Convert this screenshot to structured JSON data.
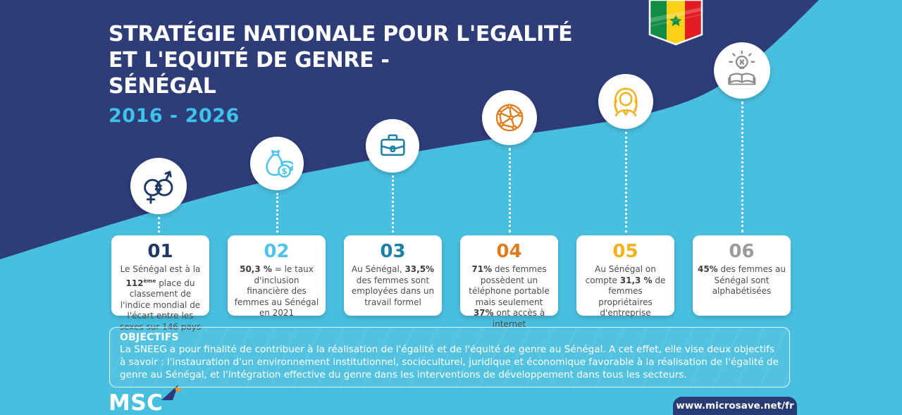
{
  "header": {
    "title_lines": [
      "STRATÉGIE NATIONALE POUR L'EGALITÉ",
      "ET L'EQUITÉ DE GENRE -",
      "SÉNÉGAL"
    ],
    "period": "2016 - 2026"
  },
  "flag": {
    "country": "Senegal",
    "colors": {
      "green": "#118C45",
      "yellow": "#FCD116",
      "red": "#E31B23",
      "star": "#118C45"
    }
  },
  "items": [
    {
      "number": "01",
      "accent_color": "#1F3864",
      "icon": "gender-equality-icon",
      "segments": [
        {
          "t": "Le  Sénégal est à la "
        },
        {
          "t": "112",
          "b": true
        },
        {
          "t": "ème",
          "b": true,
          "sup": true
        },
        {
          "t": " place du classement de l'indice mondial de l'écart entre les sexes sur 146 pays"
        }
      ]
    },
    {
      "number": "02",
      "accent_color": "#4EC3EA",
      "icon": "money-bag-icon",
      "segments": [
        {
          "t": "50,3 %",
          "b": true
        },
        {
          "t": " = le taux d'inclusion financière des femmes au Sénégal en 2021"
        }
      ]
    },
    {
      "number": "03",
      "accent_color": "#1B7FA8",
      "icon": "briefcase-icon",
      "segments": [
        {
          "t": "Au Sénégal, "
        },
        {
          "t": "33,5%",
          "b": true
        },
        {
          "t": " des femmes sont employées dans un travail formel"
        }
      ]
    },
    {
      "number": "04",
      "accent_color": "#E07C20",
      "icon": "network-icon",
      "segments": [
        {
          "t": "71%",
          "b": true
        },
        {
          "t": " des femmes possèdent un téléphone portable mais seulement "
        },
        {
          "t": "37%",
          "b": true
        },
        {
          "t": " ont accès à internet"
        }
      ]
    },
    {
      "number": "05",
      "accent_color": "#F2B11F",
      "icon": "woman-icon",
      "segments": [
        {
          "t": "Au Sénégal on compte "
        },
        {
          "t": "31,3 %",
          "b": true
        },
        {
          "t": " de femmes propriétaires d'entreprise"
        }
      ]
    },
    {
      "number": "06",
      "accent_color": "#9B9B9B",
      "icon": "idea-book-icon",
      "segments": [
        {
          "t": "45%",
          "b": true
        },
        {
          "t": " des femmes au Sénégal sont alphabétisées"
        }
      ]
    }
  ],
  "objectives": {
    "heading": "OBJECTIFS",
    "body": "La SNEEG a pour finalité de contribuer à la réalisation de l'égalité et de l'équité de genre au Sénégal. A cet effet, elle vise deux objectifs à savoir : l'instauration d'un environnement institutionnel, socioculturel, juridique et économique favorable à la réalisation de l'égalité de genre au Sénégal,  et l'intégration effective du genre dans les interventions de développement dans tous les secteurs."
  },
  "footer": {
    "logo_text": "MSC",
    "website": "www.microsave.net/fr"
  },
  "colors": {
    "navy_background": "#2E3C78",
    "sky_background": "#49BFE0",
    "period_text": "#3EC1EA",
    "website_chip": "#263C72",
    "icon_colors": [
      "#2E3C78",
      "#4EC3EA",
      "#1B7FA8",
      "#E07C20",
      "#F2B11F",
      "#8C8C8C"
    ]
  }
}
